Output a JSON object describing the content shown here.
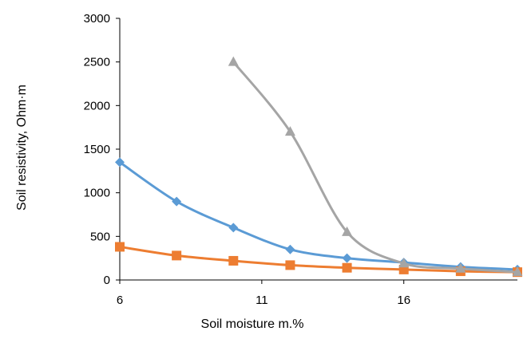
{
  "chart_data": {
    "type": "line",
    "title": "",
    "xlabel": "Soil moisture m.%",
    "ylabel": "Soil resistivity, Ohm·m",
    "xlim": [
      6,
      20
    ],
    "ylim": [
      0,
      3000
    ],
    "x_ticks": [
      6,
      11,
      16
    ],
    "y_ticks": [
      0,
      500,
      1000,
      1500,
      2000,
      2500,
      3000
    ],
    "grid": false,
    "legend": "none",
    "series": [
      {
        "color": "#5B9BD5",
        "marker": "diamond",
        "points": [
          [
            6,
            1350
          ],
          [
            8,
            900
          ],
          [
            10,
            600
          ],
          [
            12,
            350
          ],
          [
            14,
            250
          ],
          [
            16,
            200
          ],
          [
            18,
            150
          ],
          [
            20,
            120
          ]
        ]
      },
      {
        "color": "#ED7D31",
        "marker": "square",
        "points": [
          [
            6,
            380
          ],
          [
            8,
            280
          ],
          [
            10,
            220
          ],
          [
            12,
            170
          ],
          [
            14,
            140
          ],
          [
            16,
            120
          ],
          [
            18,
            100
          ],
          [
            20,
            90
          ]
        ]
      },
      {
        "color": "#A5A5A5",
        "marker": "triangle",
        "points": [
          [
            10,
            2500
          ],
          [
            12,
            1700
          ],
          [
            14,
            550
          ],
          [
            16,
            190
          ],
          [
            18,
            130
          ],
          [
            20,
            90
          ]
        ]
      }
    ]
  }
}
